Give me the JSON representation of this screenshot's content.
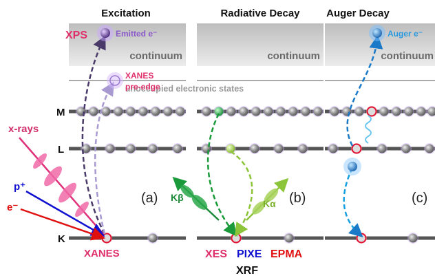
{
  "panels": [
    {
      "title": "Excitation",
      "continuum": "continuum",
      "label": "(a)"
    },
    {
      "title": "Radiative Decay",
      "continuum": "continuum",
      "label": "(b)"
    },
    {
      "title": "Auger Decay",
      "continuum": "continuum",
      "label": "(c)"
    }
  ],
  "levels": [
    "M",
    "L",
    "K"
  ],
  "excitation": {
    "xps": "XPS",
    "emitted": "Emitted e⁻",
    "xanes_pre_edge": [
      "XANES",
      "pre-edge"
    ],
    "xanes": "XANES",
    "xrays": "x-rays",
    "proton": "p⁺",
    "electron": "e⁻"
  },
  "unoccupied": "unoccupied electronic states",
  "radiative": {
    "k_beta": "Kβ",
    "k_alpha": "Kα",
    "techniques": [
      "XES",
      "PIXE",
      "EPMA"
    ],
    "xrf": "XRF"
  },
  "auger": {
    "auger_e": "Auger e⁻"
  }
}
